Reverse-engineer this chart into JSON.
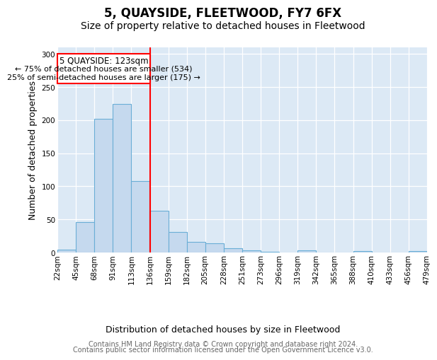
{
  "title": "5, QUAYSIDE, FLEETWOOD, FY7 6FX",
  "subtitle": "Size of property relative to detached houses in Fleetwood",
  "xlabel": "Distribution of detached houses by size in Fleetwood",
  "ylabel": "Number of detached properties",
  "bar_heights": [
    4,
    46,
    202,
    225,
    108,
    63,
    31,
    16,
    14,
    6,
    3,
    1,
    0,
    3,
    0,
    0,
    2,
    0,
    0,
    2
  ],
  "bin_labels": [
    "22sqm",
    "45sqm",
    "68sqm",
    "91sqm",
    "113sqm",
    "136sqm",
    "159sqm",
    "182sqm",
    "205sqm",
    "228sqm",
    "251sqm",
    "273sqm",
    "296sqm",
    "319sqm",
    "342sqm",
    "365sqm",
    "388sqm",
    "410sqm",
    "433sqm",
    "456sqm",
    "479sqm"
  ],
  "bar_color": "#c5d9ee",
  "bar_edge_color": "#6aaed6",
  "red_line_x": 4.52,
  "annotation_line1": "5 QUAYSIDE: 123sqm",
  "annotation_line2": "← 75% of detached houses are smaller (534)",
  "annotation_line3": "25% of semi-detached houses are larger (175) →",
  "footer_line1": "Contains HM Land Registry data © Crown copyright and database right 2024.",
  "footer_line2": "Contains public sector information licensed under the Open Government Licence v3.0.",
  "ylim": [
    0,
    310
  ],
  "yticks": [
    0,
    50,
    100,
    150,
    200,
    250,
    300
  ],
  "title_fontsize": 12,
  "subtitle_fontsize": 10,
  "ylabel_fontsize": 9,
  "tick_fontsize": 7.5,
  "footer_fontsize": 7
}
